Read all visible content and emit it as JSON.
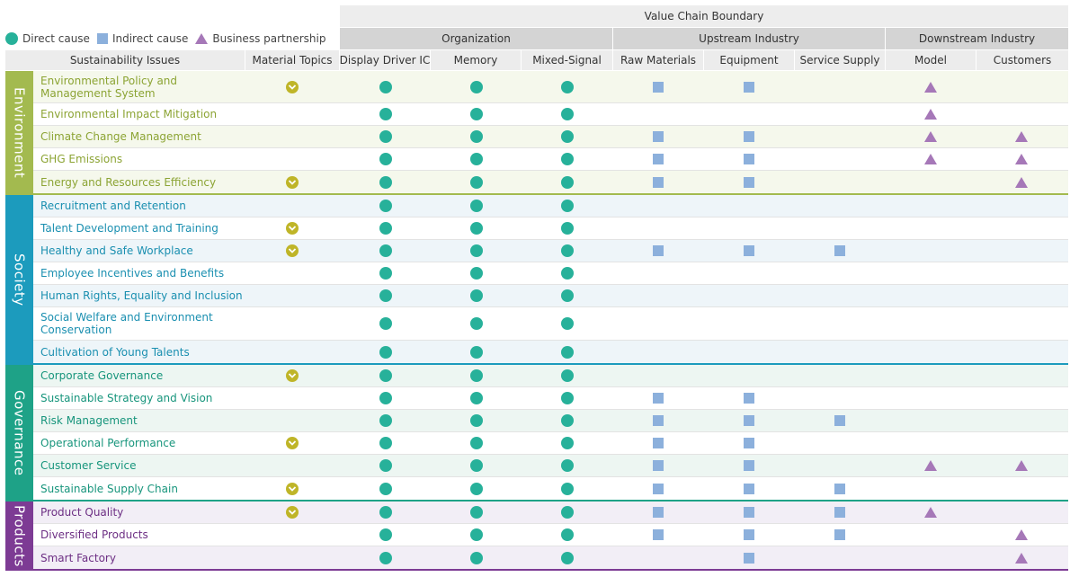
{
  "legend": {
    "direct": "Direct cause",
    "indirect": "Indirect cause",
    "partnership": "Business partnership"
  },
  "header": {
    "boundary": "Value Chain Boundary",
    "groups": [
      "Organization",
      "Upstream Industry",
      "Downstream Industry"
    ],
    "columns": [
      "Sustainability Issues",
      "Material Topics",
      "Display Driver IC",
      "Memory",
      "Mixed-Signal",
      "Raw Materials",
      "Equipment",
      "Service Supply",
      "Model",
      "Customers"
    ]
  },
  "colors": {
    "direct": "#27b19a",
    "indirect": "#8cb0dc",
    "partnership": "#a678b8",
    "material": "#bfb528"
  },
  "sections": [
    {
      "name": "Environment",
      "bar": "#a3ba4f",
      "text": "#8ca434",
      "row_bg": "#f5f8ec",
      "issues": [
        {
          "label": "Environmental Policy and Management System",
          "material": true,
          "org": [
            1,
            1,
            1
          ],
          "up": [
            "sq",
            "sq",
            ""
          ],
          "down": [
            "tri",
            ""
          ]
        },
        {
          "label": "Environmental Impact Mitigation",
          "material": false,
          "org": [
            1,
            1,
            1
          ],
          "up": [
            "",
            "",
            ""
          ],
          "down": [
            "tri",
            ""
          ]
        },
        {
          "label": "Climate Change Management",
          "material": false,
          "org": [
            1,
            1,
            1
          ],
          "up": [
            "sq",
            "sq",
            ""
          ],
          "down": [
            "tri",
            "tri"
          ]
        },
        {
          "label": "GHG Emissions",
          "material": false,
          "org": [
            1,
            1,
            1
          ],
          "up": [
            "sq",
            "sq",
            ""
          ],
          "down": [
            "tri",
            "tri"
          ]
        },
        {
          "label": "Energy and Resources Efficiency",
          "material": true,
          "org": [
            1,
            1,
            1
          ],
          "up": [
            "sq",
            "sq",
            ""
          ],
          "down": [
            "",
            "tri"
          ]
        }
      ]
    },
    {
      "name": "Society",
      "bar": "#1c9bbd",
      "text": "#1a8fb0",
      "row_bg": "#eef5f9",
      "issues": [
        {
          "label": "Recruitment and Retention",
          "material": false,
          "org": [
            1,
            1,
            1
          ],
          "up": [
            "",
            "",
            ""
          ],
          "down": [
            "",
            ""
          ]
        },
        {
          "label": "Talent Development and Training",
          "material": true,
          "org": [
            1,
            1,
            1
          ],
          "up": [
            "",
            "",
            ""
          ],
          "down": [
            "",
            ""
          ]
        },
        {
          "label": "Healthy and Safe Workplace",
          "material": true,
          "org": [
            1,
            1,
            1
          ],
          "up": [
            "sq",
            "sq",
            "sq"
          ],
          "down": [
            "",
            ""
          ]
        },
        {
          "label": "Employee Incentives and Benefits",
          "material": false,
          "org": [
            1,
            1,
            1
          ],
          "up": [
            "",
            "",
            ""
          ],
          "down": [
            "",
            ""
          ]
        },
        {
          "label": "Human Rights, Equality and Inclusion",
          "material": false,
          "org": [
            1,
            1,
            1
          ],
          "up": [
            "",
            "",
            ""
          ],
          "down": [
            "",
            ""
          ]
        },
        {
          "label": "Social Welfare and Environment Conservation",
          "material": false,
          "org": [
            1,
            1,
            1
          ],
          "up": [
            "",
            "",
            ""
          ],
          "down": [
            "",
            ""
          ]
        },
        {
          "label": "Cultivation of Young Talents",
          "material": false,
          "org": [
            1,
            1,
            1
          ],
          "up": [
            "",
            "",
            ""
          ],
          "down": [
            "",
            ""
          ]
        }
      ]
    },
    {
      "name": "Governance",
      "bar": "#1ea287",
      "text": "#17957c",
      "row_bg": "#edf6f2",
      "issues": [
        {
          "label": "Corporate Governance",
          "material": true,
          "org": [
            1,
            1,
            1
          ],
          "up": [
            "",
            "",
            ""
          ],
          "down": [
            "",
            ""
          ]
        },
        {
          "label": "Sustainable Strategy and Vision",
          "material": false,
          "org": [
            1,
            1,
            1
          ],
          "up": [
            "sq",
            "sq",
            ""
          ],
          "down": [
            "",
            ""
          ]
        },
        {
          "label": "Risk Management",
          "material": false,
          "org": [
            1,
            1,
            1
          ],
          "up": [
            "sq",
            "sq",
            "sq"
          ],
          "down": [
            "",
            ""
          ]
        },
        {
          "label": "Operational Performance",
          "material": true,
          "org": [
            1,
            1,
            1
          ],
          "up": [
            "sq",
            "sq",
            ""
          ],
          "down": [
            "",
            ""
          ]
        },
        {
          "label": "Customer Service",
          "material": false,
          "org": [
            1,
            1,
            1
          ],
          "up": [
            "sq",
            "sq",
            ""
          ],
          "down": [
            "tri",
            "tri"
          ]
        },
        {
          "label": "Sustainable Supply Chain",
          "material": true,
          "org": [
            1,
            1,
            1
          ],
          "up": [
            "sq",
            "sq",
            "sq"
          ],
          "down": [
            "",
            ""
          ]
        }
      ]
    },
    {
      "name": "Products",
      "bar": "#7d3b94",
      "text": "#6d2f84",
      "row_bg": "#f2eef6",
      "issues": [
        {
          "label": "Product Quality",
          "material": true,
          "org": [
            1,
            1,
            1
          ],
          "up": [
            "sq",
            "sq",
            "sq"
          ],
          "down": [
            "tri",
            ""
          ]
        },
        {
          "label": "Diversified Products",
          "material": false,
          "org": [
            1,
            1,
            1
          ],
          "up": [
            "sq",
            "sq",
            "sq"
          ],
          "down": [
            "",
            "tri"
          ]
        },
        {
          "label": "Smart Factory",
          "material": false,
          "org": [
            1,
            1,
            1
          ],
          "up": [
            "",
            "sq",
            ""
          ],
          "down": [
            "",
            "tri"
          ]
        }
      ]
    }
  ]
}
